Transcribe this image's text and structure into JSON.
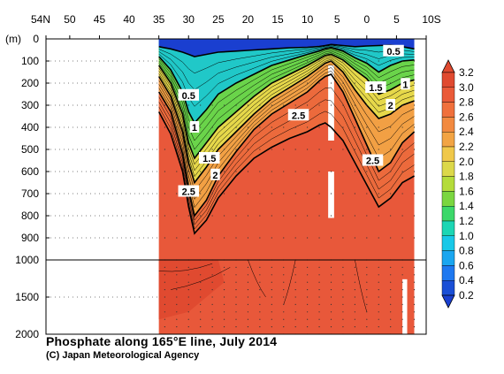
{
  "chart_data": {
    "type": "heatmap",
    "title": "Phosphate along 165°E line, July 2014",
    "credit": "(C) Japan Meteorological Agency",
    "xlabel": "",
    "ylabel": "(m)",
    "x_tick_labels": [
      "54N",
      "50",
      "45",
      "40",
      "35",
      "30",
      "25",
      "20",
      "15",
      "10",
      "5",
      "0",
      "5",
      "10S"
    ],
    "x_tick_values": [
      54,
      50,
      45,
      40,
      35,
      30,
      25,
      20,
      15,
      10,
      5,
      0,
      -5,
      -10
    ],
    "xlim": [
      54,
      -10
    ],
    "y_tick_labels": [
      "0",
      "100",
      "200",
      "300",
      "400",
      "500",
      "600",
      "700",
      "800",
      "900",
      "1000",
      "1500",
      "2000"
    ],
    "y_tick_values": [
      0,
      100,
      200,
      300,
      400,
      500,
      600,
      700,
      800,
      900,
      1000,
      1500,
      2000
    ],
    "ylim": [
      0,
      2000
    ],
    "y_scale_note": "0-1000 m linear upper panel, 1000-2000 m compressed lower panel",
    "data_xlim": [
      35,
      -8
    ],
    "colorbar": {
      "tick_labels": [
        "0.2",
        "0.4",
        "0.6",
        "0.8",
        "1.0",
        "1.2",
        "1.4",
        "1.6",
        "1.8",
        "2.0",
        "2.2",
        "2.4",
        "2.6",
        "2.8",
        "3.0",
        "3.2"
      ],
      "levels": [
        0.2,
        0.4,
        0.6,
        0.8,
        1.0,
        1.2,
        1.4,
        1.6,
        1.8,
        2.0,
        2.2,
        2.4,
        2.6,
        2.8,
        3.0,
        3.2
      ],
      "colors": [
        "#1a4fd6",
        "#1e78f0",
        "#1aa6f0",
        "#18c8e8",
        "#1cd6b4",
        "#3cd86a",
        "#7ad640",
        "#b4dc3a",
        "#dcd84a",
        "#f0c84a",
        "#f2a444",
        "#f28a40",
        "#f0703c",
        "#ea5a38",
        "#e04a30"
      ]
    },
    "contour_labels": [
      {
        "text": "0.5",
        "lat": -4.5,
        "depth": 55
      },
      {
        "text": "1.5",
        "lat": -1.5,
        "depth": 220
      },
      {
        "text": "1",
        "lat": -6.5,
        "depth": 205
      },
      {
        "text": "2",
        "lat": -4,
        "depth": 300
      },
      {
        "text": "0.5",
        "lat": 30,
        "depth": 255
      },
      {
        "text": "1",
        "lat": 29,
        "depth": 400
      },
      {
        "text": "2.5",
        "lat": 11.5,
        "depth": 345
      },
      {
        "text": "1.5",
        "lat": 26.5,
        "depth": 540
      },
      {
        "text": "2",
        "lat": 25.5,
        "depth": 615
      },
      {
        "text": "2.5",
        "lat": 30,
        "depth": 690
      },
      {
        "text": "2.5",
        "lat": -1,
        "depth": 550
      }
    ],
    "profiles": {
      "lat": [
        35,
        33,
        31,
        30,
        29,
        27,
        25,
        22,
        19,
        16,
        13,
        10,
        8,
        7,
        6,
        4,
        2,
        0,
        -2,
        -4,
        -6,
        -8
      ],
      "d05": [
        35,
        45,
        60,
        70,
        80,
        70,
        60,
        55,
        50,
        45,
        40,
        38,
        34,
        30,
        25,
        30,
        35,
        32,
        30,
        28,
        35,
        45
      ],
      "d10": [
        80,
        140,
        240,
        330,
        380,
        320,
        250,
        200,
        160,
        120,
        95,
        70,
        55,
        45,
        40,
        55,
        85,
        110,
        150,
        120,
        100,
        95
      ],
      "d15": [
        120,
        200,
        340,
        470,
        540,
        470,
        400,
        330,
        260,
        200,
        160,
        120,
        90,
        75,
        70,
        95,
        140,
        180,
        250,
        230,
        200,
        185
      ],
      "d20": [
        170,
        260,
        420,
        560,
        650,
        580,
        500,
        420,
        340,
        270,
        220,
        170,
        130,
        110,
        100,
        150,
        230,
        300,
        360,
        340,
        300,
        280
      ],
      "d25": [
        240,
        330,
        520,
        680,
        800,
        730,
        620,
        510,
        410,
        340,
        290,
        240,
        190,
        170,
        160,
        240,
        360,
        480,
        600,
        560,
        470,
        420
      ],
      "d28": [
        330,
        430,
        600,
        760,
        880,
        820,
        720,
        620,
        540,
        490,
        450,
        420,
        390,
        380,
        400,
        460,
        560,
        660,
        760,
        720,
        650,
        620
      ]
    }
  }
}
